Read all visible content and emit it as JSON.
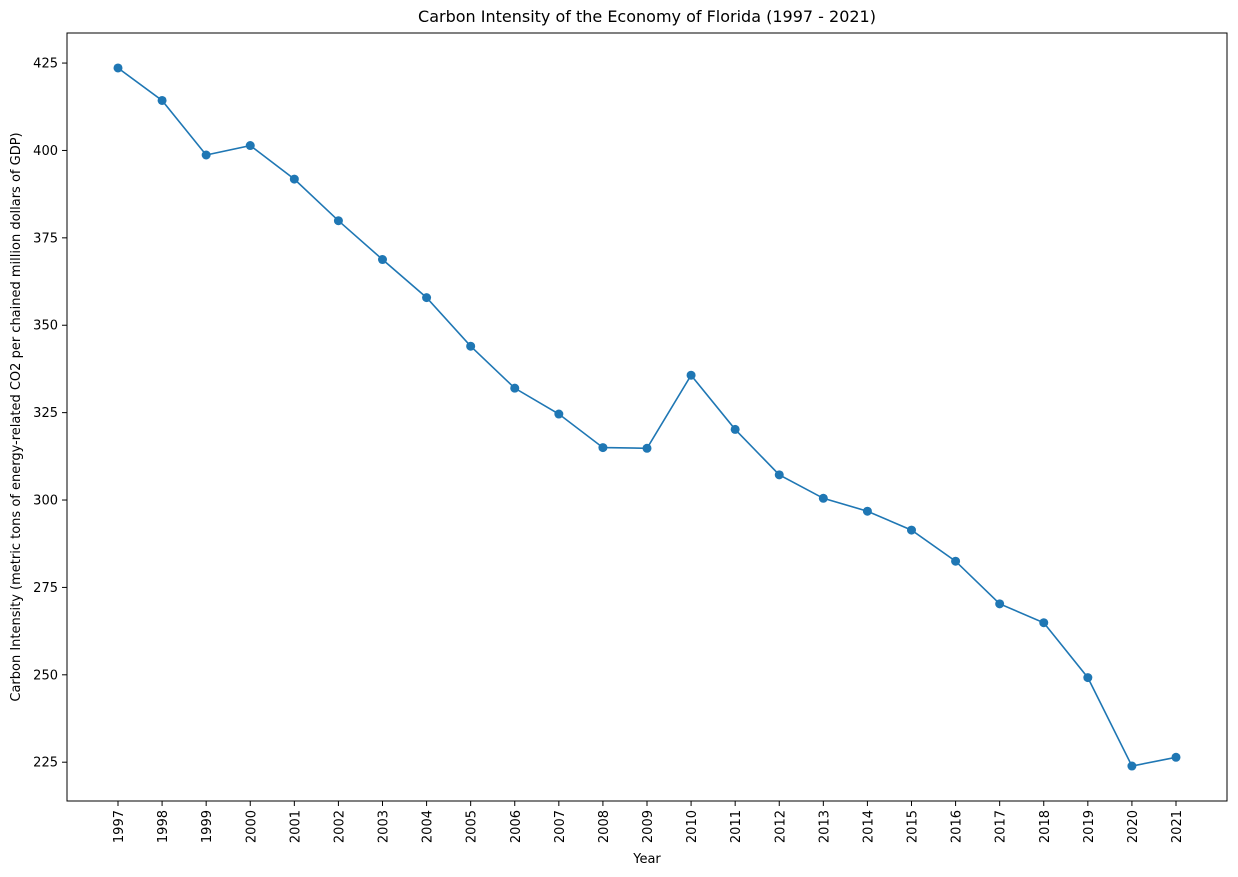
{
  "chart_data": {
    "type": "line",
    "title": "Carbon Intensity of the Economy of Florida (1997 - 2021)",
    "xlabel": "Year",
    "ylabel": "Carbon Intensity (metric tons of energy-related CO2 per chained million dollars of GDP)",
    "categories": [
      "1997",
      "1998",
      "1999",
      "2000",
      "2001",
      "2002",
      "2003",
      "2004",
      "2005",
      "2006",
      "2007",
      "2008",
      "2009",
      "2010",
      "2011",
      "2012",
      "2013",
      "2014",
      "2015",
      "2016",
      "2017",
      "2018",
      "2019",
      "2020",
      "2021"
    ],
    "series": [
      {
        "values": [
          423.6,
          414.3,
          398.7,
          401.4,
          391.8,
          379.9,
          368.8,
          357.9,
          344.0,
          332.0,
          324.6,
          315.0,
          314.8,
          335.7,
          320.2,
          307.2,
          300.5,
          296.8,
          291.4,
          282.5,
          270.3,
          264.9,
          249.2,
          223.9,
          226.4
        ],
        "color": "#1f77b4",
        "marker": "circle"
      }
    ],
    "yticks": [
      225,
      250,
      275,
      300,
      325,
      350,
      375,
      400,
      425
    ],
    "ylim": [
      213.9,
      433.6
    ],
    "grid": false,
    "legend": "none"
  }
}
